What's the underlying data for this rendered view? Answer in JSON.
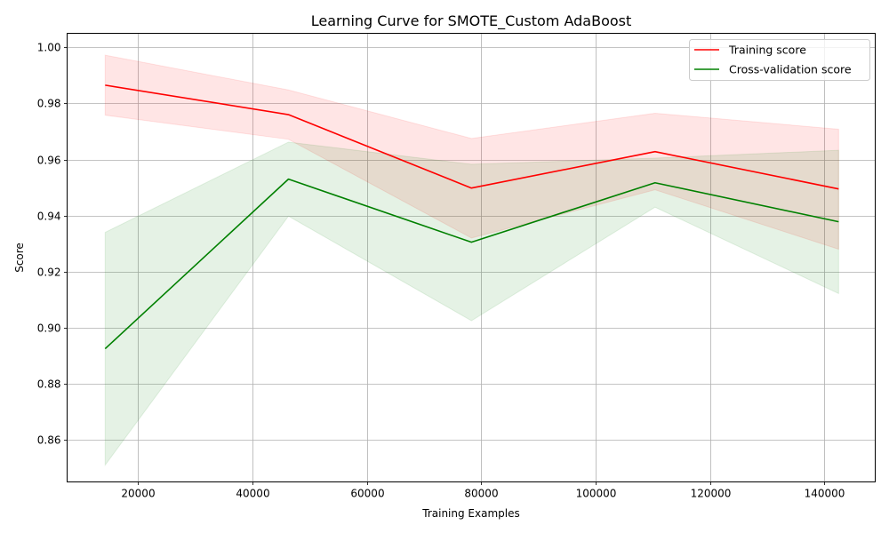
{
  "chart_data": {
    "type": "line",
    "title": "Learning Curve for SMOTE_Custom AdaBoost",
    "xlabel": "Training Examples",
    "ylabel": "Score",
    "xlim": [
      7600,
      148900
    ],
    "ylim": [
      0.845,
      1.005
    ],
    "xticks": [
      20000,
      40000,
      60000,
      80000,
      100000,
      120000,
      140000
    ],
    "yticks": [
      0.86,
      0.88,
      0.9,
      0.92,
      0.94,
      0.96,
      0.98,
      1.0
    ],
    "xtick_labels": [
      "20000",
      "40000",
      "60000",
      "80000",
      "100000",
      "120000",
      "140000"
    ],
    "ytick_labels": [
      "0.86",
      "0.88",
      "0.90",
      "0.92",
      "0.94",
      "0.96",
      "0.98",
      "1.00"
    ],
    "grid": true,
    "legend_position": "upper right",
    "x": [
      14250,
      46300,
      78300,
      110400,
      142500
    ],
    "series": [
      {
        "name": "Training score",
        "color": "#ff0000",
        "fill_color": "#ff0000",
        "mean": [
          0.9865,
          0.976,
          0.9498,
          0.9628,
          0.9495
        ],
        "upper": [
          0.9972,
          0.9848,
          0.9675,
          0.9765,
          0.9708
        ],
        "lower": [
          0.9758,
          0.9672,
          0.932,
          0.9492,
          0.928
        ]
      },
      {
        "name": "Cross-validation score",
        "color": "#008000",
        "fill_color": "#008000",
        "mean": [
          0.8925,
          0.953,
          0.9305,
          0.9517,
          0.9378
        ],
        "upper": [
          0.934,
          0.9662,
          0.9583,
          0.9605,
          0.9633
        ],
        "lower": [
          0.851,
          0.9398,
          0.9025,
          0.943,
          0.9122
        ]
      }
    ]
  }
}
